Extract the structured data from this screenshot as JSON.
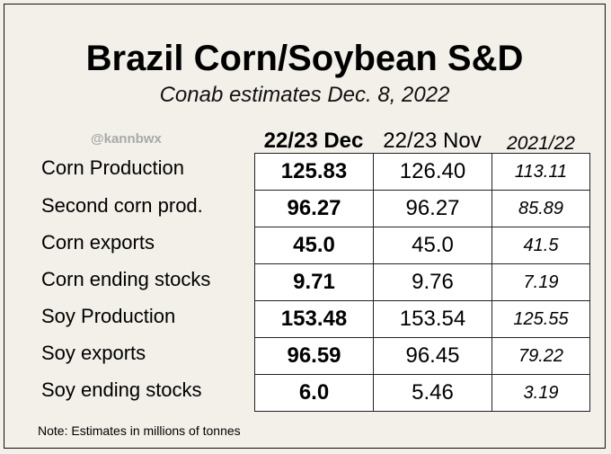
{
  "title": "Brazil Corn/Soybean S&D",
  "subtitle": "Conab estimates Dec. 8, 2022",
  "watermark": "@kannbwx",
  "columns": [
    "22/23 Dec",
    "22/23 Nov",
    "2021/22"
  ],
  "rows": [
    {
      "label": "Corn Production",
      "dec": "125.83",
      "nov": "126.40",
      "prev": "113.11"
    },
    {
      "label": "Second corn prod.",
      "dec": "96.27",
      "nov": "96.27",
      "prev": "85.89"
    },
    {
      "label": "Corn exports",
      "dec": "45.0",
      "nov": "45.0",
      "prev": "41.5"
    },
    {
      "label": "Corn ending stocks",
      "dec": "9.71",
      "nov": "9.76",
      "prev": "7.19"
    },
    {
      "label": "Soy Production",
      "dec": "153.48",
      "nov": "153.54",
      "prev": "125.55"
    },
    {
      "label": "Soy exports",
      "dec": "96.59",
      "nov": "96.45",
      "prev": "79.22"
    },
    {
      "label": "Soy ending stocks",
      "dec": "6.0",
      "nov": "5.46",
      "prev": "3.19"
    }
  ],
  "note": "Note: Estimates in millions of tonnes",
  "colors": {
    "background": "#f2f0e9",
    "cell": "#ffffff",
    "watermark": "#a9a9a9"
  }
}
